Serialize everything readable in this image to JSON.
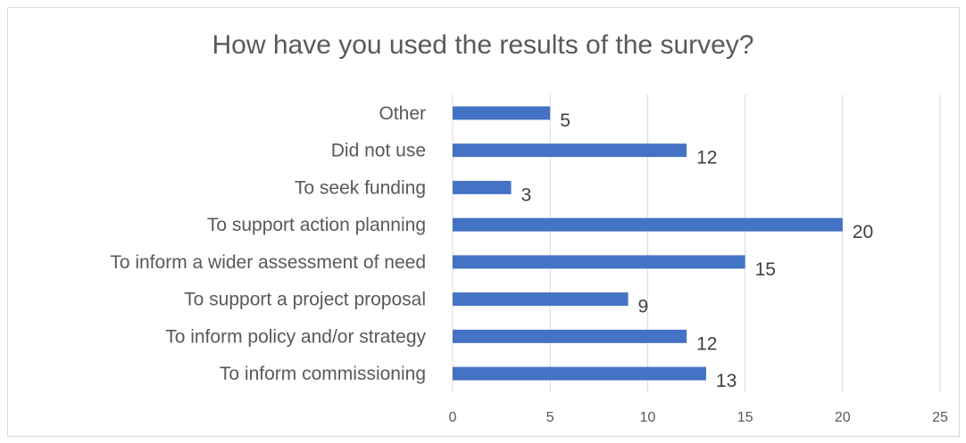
{
  "chart_data": {
    "type": "bar",
    "orientation": "horizontal",
    "title": "How have you used the results of the survey?",
    "categories": [
      "Other",
      "Did not use",
      "To seek funding",
      "To support action planning",
      "To inform a wider assessment of need",
      "To support a project proposal",
      "To inform policy and/or strategy",
      "To inform commissioning"
    ],
    "values": [
      5,
      12,
      3,
      20,
      15,
      9,
      12,
      13
    ],
    "xlim": [
      0,
      25
    ],
    "xticks": [
      0,
      5,
      10,
      15,
      20,
      25
    ],
    "grid": "vertical",
    "legend": "none",
    "bar_color": "#4472C4",
    "grid_color": "#d9d9d9"
  }
}
